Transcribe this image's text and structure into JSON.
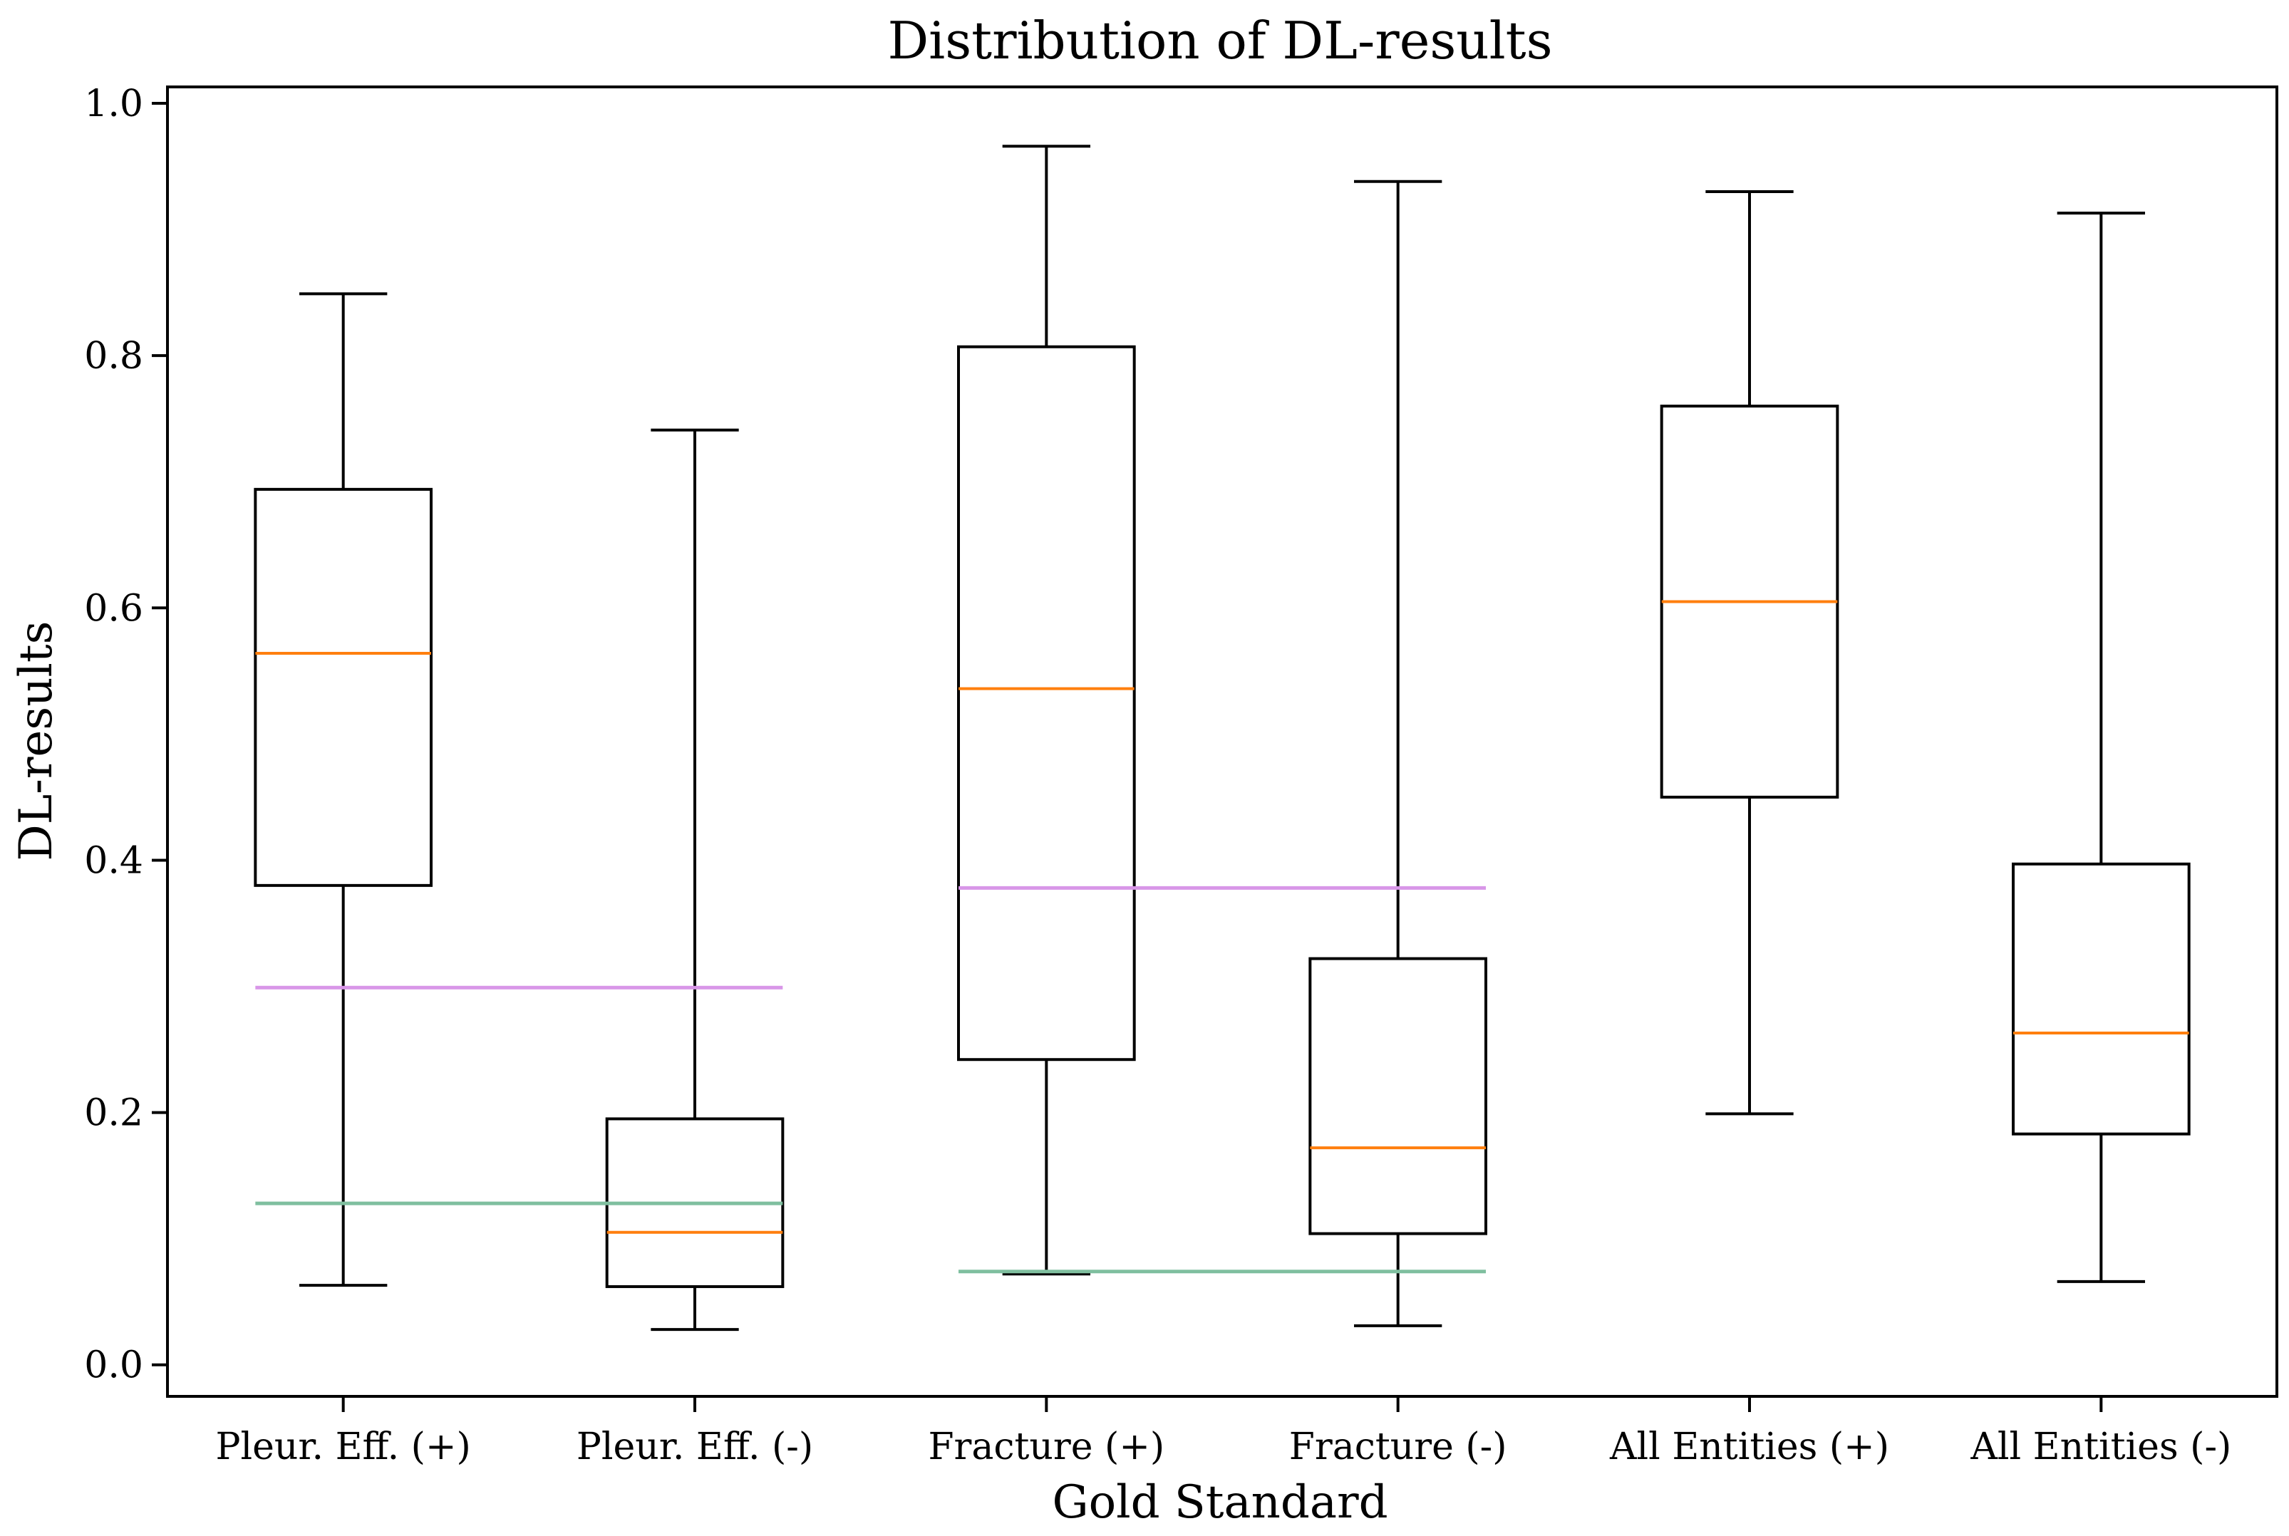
{
  "chart_data": {
    "type": "box",
    "title": "Distribution of DL-results",
    "xlabel": "Gold Standard",
    "ylabel": "DL-results",
    "ylim": [
      -0.025,
      1.013
    ],
    "yticks": [
      0.0,
      0.2,
      0.4,
      0.6,
      0.8,
      1.0
    ],
    "ytick_labels": [
      "0.0",
      "0.2",
      "0.4",
      "0.6",
      "0.8",
      "1.0"
    ],
    "categories": [
      "Pleur. Eff. (+)",
      "Pleur. Eff. (-)",
      "Fracture (+)",
      "Fracture (-)",
      "All Entities (+)",
      "All Entities (-)"
    ],
    "boxes": [
      {
        "whislo": 0.063,
        "q1": 0.38,
        "med": 0.564,
        "q3": 0.694,
        "whishi": 0.849
      },
      {
        "whislo": 0.028,
        "q1": 0.062,
        "med": 0.105,
        "q3": 0.195,
        "whishi": 0.741
      },
      {
        "whislo": 0.072,
        "q1": 0.242,
        "med": 0.536,
        "q3": 0.807,
        "whishi": 0.966
      },
      {
        "whislo": 0.031,
        "q1": 0.104,
        "med": 0.172,
        "q3": 0.322,
        "whishi": 0.938
      },
      {
        "whislo": 0.199,
        "q1": 0.45,
        "med": 0.605,
        "q3": 0.76,
        "whishi": 0.93
      },
      {
        "whislo": 0.066,
        "q1": 0.183,
        "med": 0.263,
        "q3": 0.397,
        "whishi": 0.913
      }
    ],
    "threshold_lines": [
      {
        "color": "#d896e8",
        "value": 0.299,
        "from_category": 0,
        "to_category": 1
      },
      {
        "color": "#7fbf9f",
        "value": 0.128,
        "from_category": 0,
        "to_category": 1
      },
      {
        "color": "#d896e8",
        "value": 0.378,
        "from_category": 2,
        "to_category": 3
      },
      {
        "color": "#7fbf9f",
        "value": 0.074,
        "from_category": 2,
        "to_category": 3
      }
    ],
    "colors": {
      "box": "#000000",
      "median": "#ff7f0e"
    },
    "grid": false
  }
}
